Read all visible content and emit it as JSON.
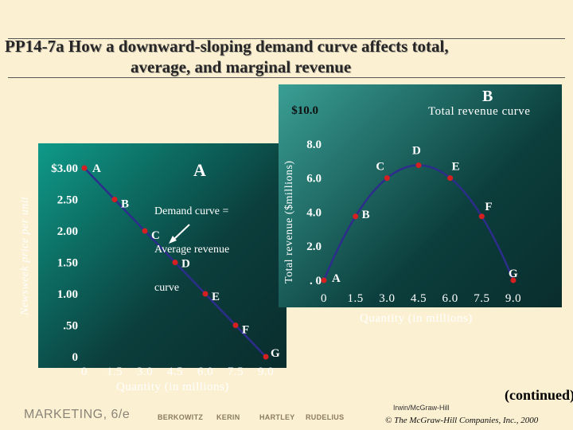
{
  "title": {
    "line1": "PP14-7a  How a downward-sloping demand curve affects total,",
    "line2": "average, and marginal revenue"
  },
  "colors": {
    "panel_dark": "#0a2d2d",
    "panel_light": "#0f9a89",
    "curve": "#2d2d8c",
    "point": "#d42020",
    "background": "#fbf0d2"
  },
  "panel_a": {
    "letter": "A",
    "ylabel": "Newsweek price per unit",
    "xlabel": "Quantity (in millions)",
    "curve_label": "Demand curve =\nAverage revenue\ncurve",
    "curve_label_lines": [
      "Demand curve =",
      "Average revenue",
      "curve"
    ],
    "y_ticks": [
      "$3.00",
      "2.50",
      "2.00",
      "1.50",
      "1.00",
      ".50",
      "0"
    ],
    "x_ticks": [
      "0",
      "1.5",
      "3.0",
      "4.5",
      "6.0",
      "7.5",
      "9.0"
    ]
  },
  "panel_b": {
    "letter": "B",
    "title": "Total revenue curve",
    "ylabel": "Total revenue ($millions)",
    "xlabel": "Quantity (in millions)",
    "y_ticks": [
      "$10.0",
      "8.0",
      "6.0",
      "4.0",
      "2.0",
      ". 0"
    ],
    "x_ticks": [
      "0",
      "1.5",
      "3.0",
      "4.5",
      "6.0",
      "7.5",
      "9.0"
    ]
  },
  "chart_data": [
    {
      "type": "line",
      "title": "",
      "xlabel": "Quantity (in millions)",
      "ylabel": "Newsweek price per unit",
      "xlim": [
        0,
        9
      ],
      "ylim": [
        0,
        3
      ],
      "series": [
        {
          "name": "Demand curve = Average revenue curve",
          "points": [
            {
              "label": "A",
              "x": 0,
              "y": 3.0
            },
            {
              "label": "B",
              "x": 1.5,
              "y": 2.5
            },
            {
              "label": "C",
              "x": 3.0,
              "y": 2.0
            },
            {
              "label": "D",
              "x": 4.5,
              "y": 1.5
            },
            {
              "label": "E",
              "x": 6.0,
              "y": 1.0
            },
            {
              "label": "F",
              "x": 7.5,
              "y": 0.5
            },
            {
              "label": "G",
              "x": 9.0,
              "y": 0
            }
          ]
        }
      ]
    },
    {
      "type": "line",
      "title": "Total revenue curve",
      "xlabel": "Quantity (in millions)",
      "ylabel": "Total revenue ($millions)",
      "xlim": [
        0,
        9
      ],
      "ylim": [
        0,
        10
      ],
      "series": [
        {
          "name": "Total revenue curve",
          "points": [
            {
              "label": "A",
              "x": 0,
              "y": 0
            },
            {
              "label": "B",
              "x": 1.5,
              "y": 3.75
            },
            {
              "label": "C",
              "x": 3.0,
              "y": 6.0
            },
            {
              "label": "D",
              "x": 4.5,
              "y": 6.75
            },
            {
              "label": "E",
              "x": 6.0,
              "y": 6.0
            },
            {
              "label": "F",
              "x": 7.5,
              "y": 3.75
            },
            {
              "label": "G",
              "x": 9.0,
              "y": 0
            }
          ]
        }
      ]
    }
  ],
  "footer": {
    "marketing": "MARKETING, 6/e",
    "authors": [
      "BERKOWITZ",
      "KERIN",
      "HARTLEY",
      "RUDELIUS"
    ],
    "continued": "(continued)",
    "publisher_line1": "Irwin/McGraw-Hill",
    "publisher_line2": "© The McGraw-Hill Companies, Inc., 2000"
  }
}
